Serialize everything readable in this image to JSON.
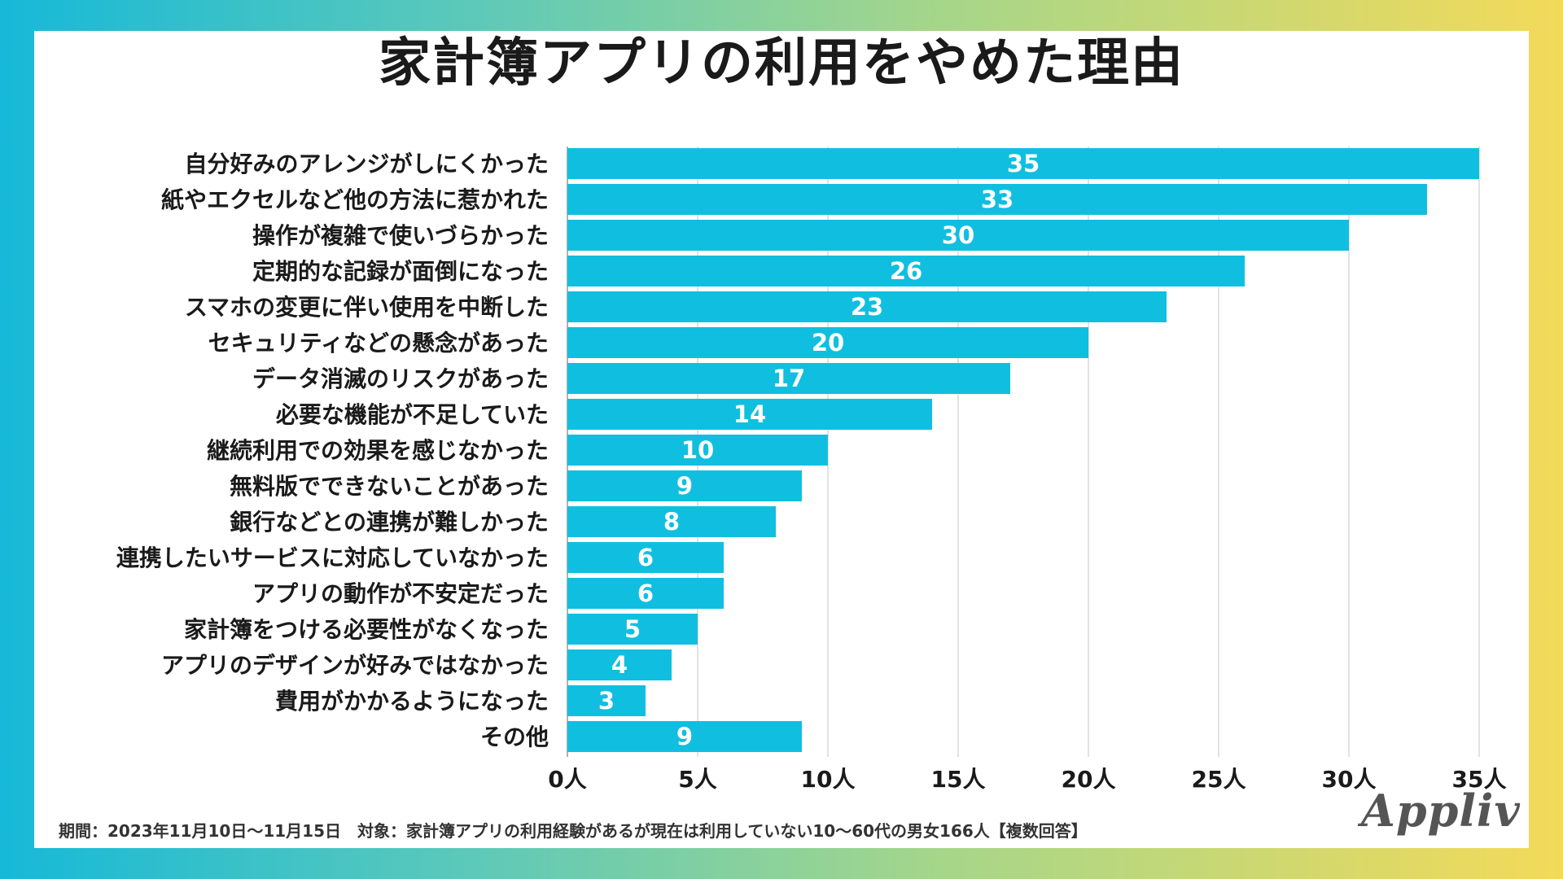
{
  "title": "家計簿アプリの利用をやめた理由",
  "footnote": "期間：2023年11月10日〜11月15日　対象：家計簿アプリの利用経験があるが現在は利用していない10〜60代の男女166人【複数回答】",
  "logo": "Appliv",
  "colors": {
    "bar": "#10bfe0",
    "grid": "#d9d9d9",
    "axis": "#999999"
  },
  "chart_data": {
    "type": "bar",
    "orientation": "horizontal",
    "title": "家計簿アプリの利用をやめた理由",
    "categories": [
      "自分好みのアレンジがしにくかった",
      "紙やエクセルなど他の方法に惹かれた",
      "操作が複雑で使いづらかった",
      "定期的な記録が面倒になった",
      "スマホの変更に伴い使用を中断した",
      "セキュリティなどの懸念があった",
      "データ消滅のリスクがあった",
      "必要な機能が不足していた",
      "継続利用での効果を感じなかった",
      "無料版でできないことがあった",
      "銀行などとの連携が難しかった",
      "連携したいサービスに対応していなかった",
      "アプリの動作が不安定だった",
      "家計簿をつける必要性がなくなった",
      "アプリのデザインが好みではなかった",
      "費用がかかるようになった",
      "その他"
    ],
    "values": [
      35,
      33,
      30,
      26,
      23,
      20,
      17,
      14,
      10,
      9,
      8,
      6,
      6,
      5,
      4,
      3,
      9
    ],
    "xlim": [
      0,
      35
    ],
    "xticks": [
      0,
      5,
      10,
      15,
      20,
      25,
      30,
      35
    ],
    "xtick_labels": [
      "0人",
      "5人",
      "10人",
      "15人",
      "20人",
      "25人",
      "30人",
      "35人"
    ],
    "xlabel": "",
    "ylabel": "",
    "grid": true
  }
}
